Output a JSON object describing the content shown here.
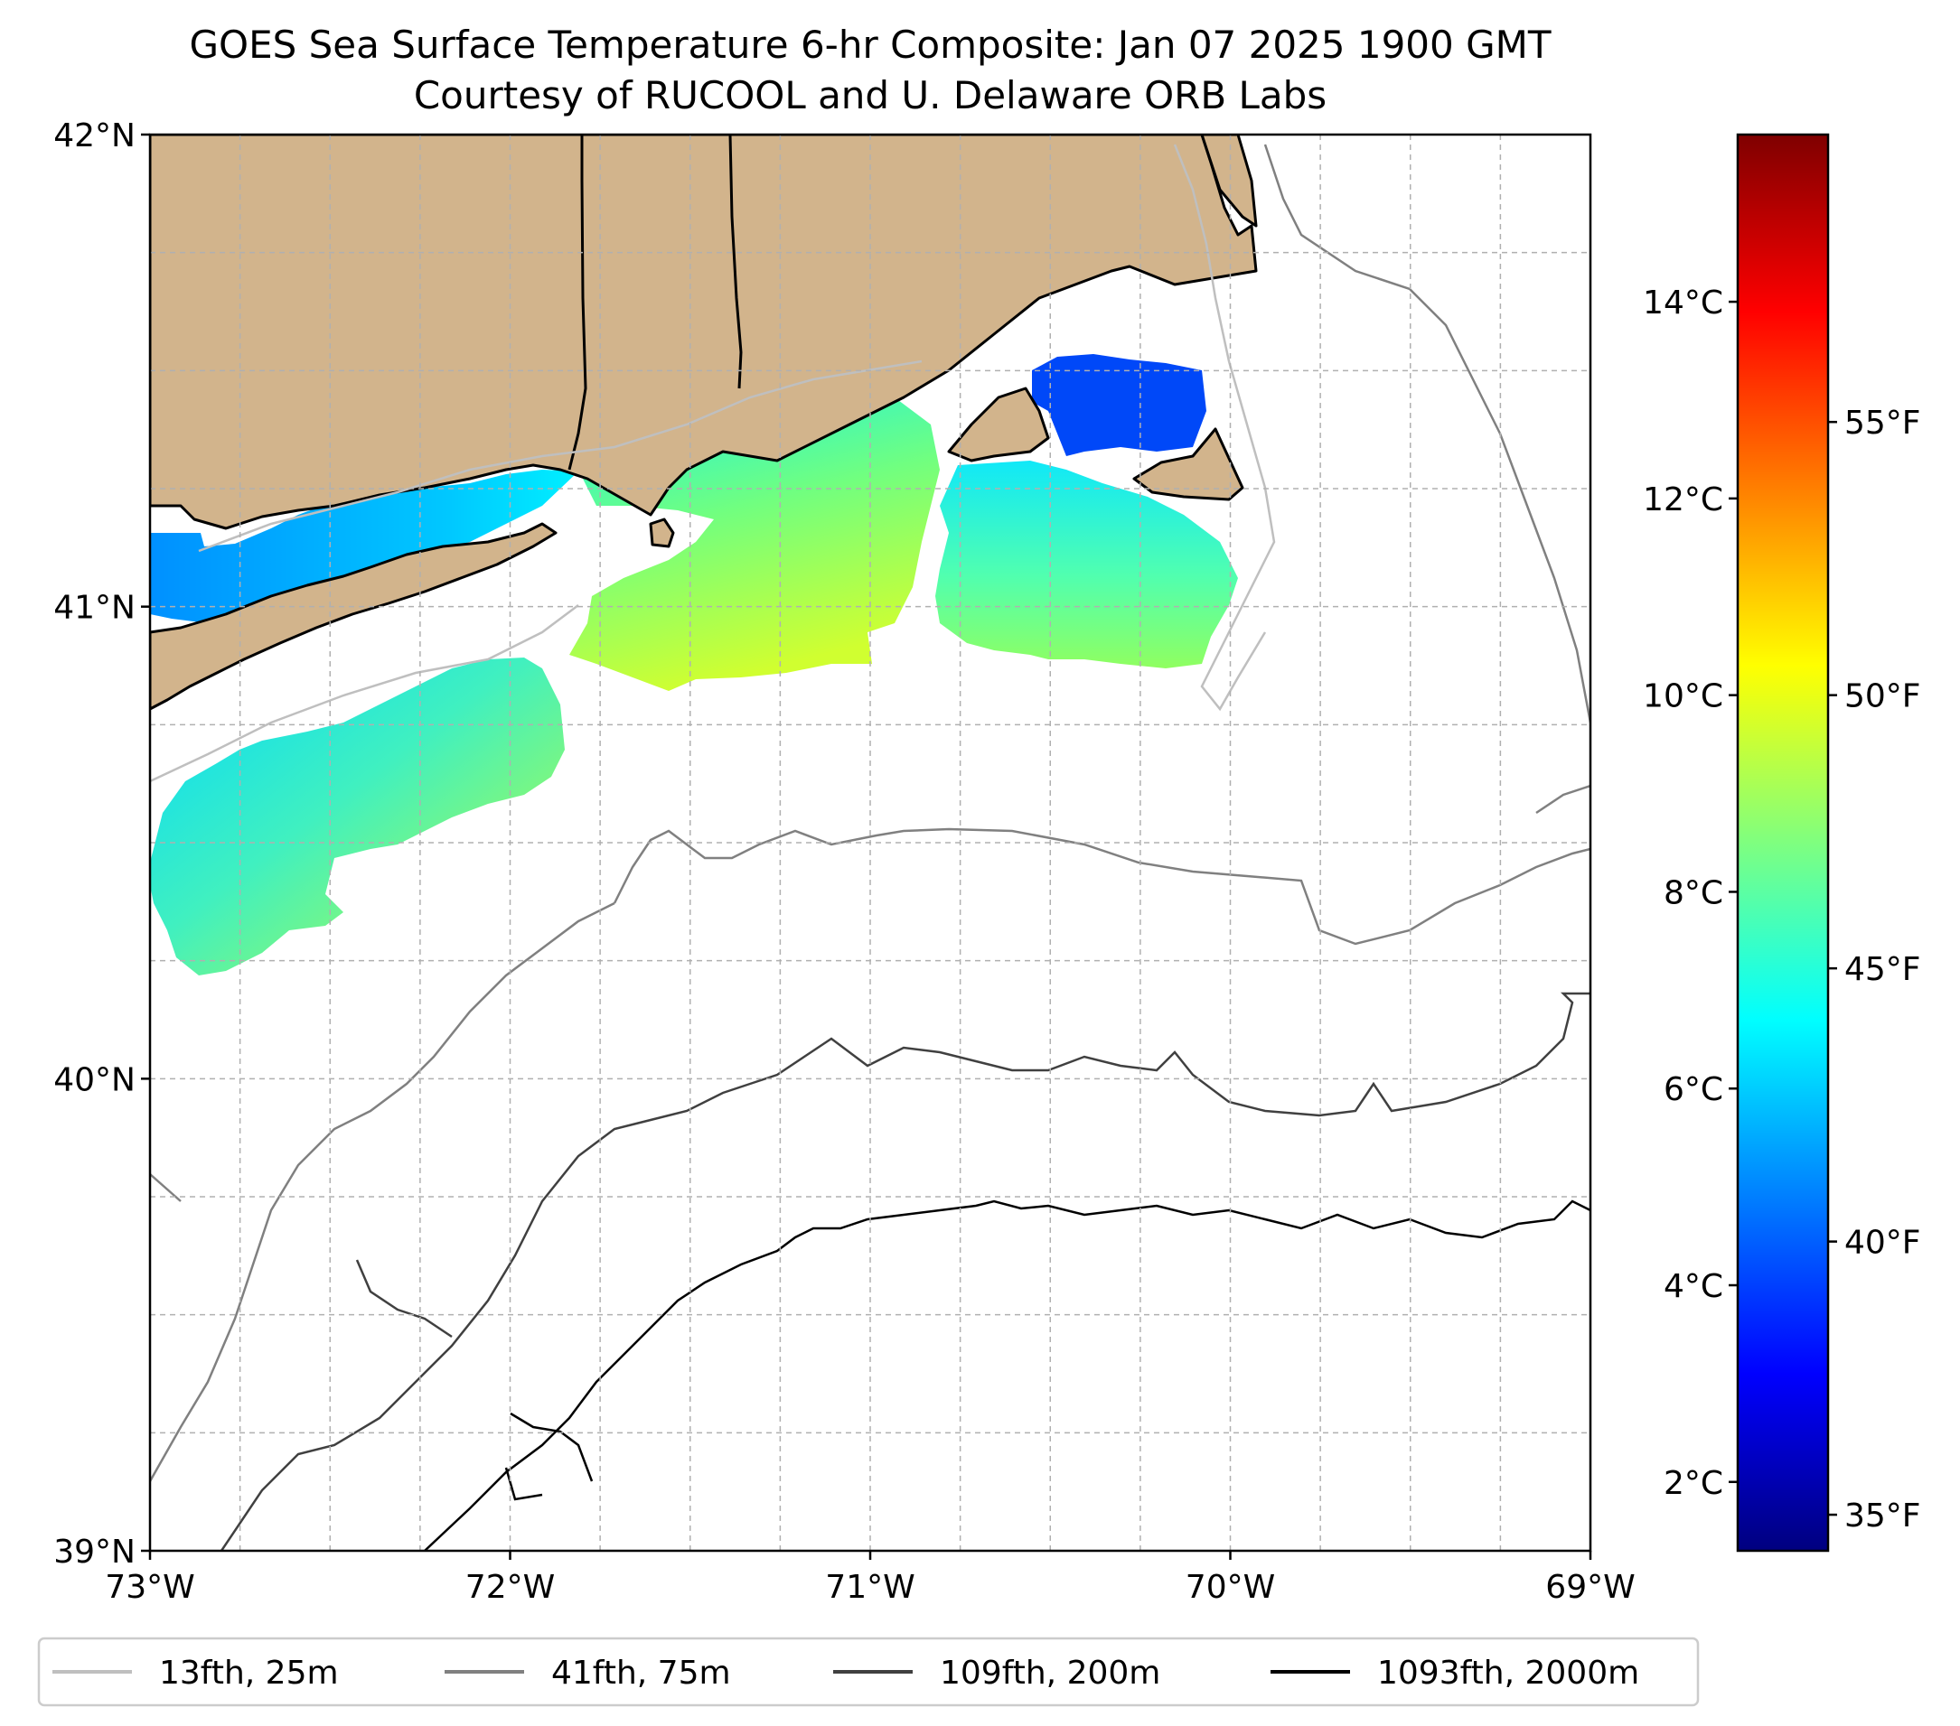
{
  "title": {
    "line1": "GOES Sea Surface Temperature 6-hr Composite: Jan 07 2025 1900 GMT",
    "line2": "Courtesy of RUCOOL and U. Delaware ORB Labs"
  },
  "map": {
    "lon_range": [
      -73,
      -69
    ],
    "lat_range": [
      39,
      42
    ],
    "lon_ticks": [
      {
        "value": -73,
        "label": "73°W"
      },
      {
        "value": -72,
        "label": "72°W"
      },
      {
        "value": -71,
        "label": "71°W"
      },
      {
        "value": -70,
        "label": "70°W"
      },
      {
        "value": -69,
        "label": "69°W"
      }
    ],
    "lat_ticks": [
      {
        "value": 39,
        "label": "39°N"
      },
      {
        "value": 40,
        "label": "40°N"
      },
      {
        "value": 41,
        "label": "41°N"
      },
      {
        "value": 42,
        "label": "42°N"
      }
    ],
    "minor_lon_gridlines": [
      -72.75,
      -72.5,
      -72.25,
      -71.75,
      -71.5,
      -71.25,
      -70.75,
      -70.5,
      -70.25,
      -69.75,
      -69.5,
      -69.25
    ],
    "minor_lat_gridlines": [
      39.25,
      39.5,
      39.75,
      40.25,
      40.5,
      40.75,
      41.25,
      41.5,
      41.75
    ],
    "land_color": "#d2b48c",
    "grid": "dashed"
  },
  "colorbar": {
    "celsius_range": [
      1.3,
      15.7
    ],
    "celsius_ticks": [
      {
        "value": 2,
        "label": "2°C"
      },
      {
        "value": 4,
        "label": "4°C"
      },
      {
        "value": 6,
        "label": "6°C"
      },
      {
        "value": 8,
        "label": "8°C"
      },
      {
        "value": 10,
        "label": "10°C"
      },
      {
        "value": 12,
        "label": "12°C"
      },
      {
        "value": 14,
        "label": "14°C"
      }
    ],
    "fahrenheit_ticks": [
      {
        "value": 35,
        "label": "35°F"
      },
      {
        "value": 40,
        "label": "40°F"
      },
      {
        "value": 45,
        "label": "45°F"
      },
      {
        "value": 50,
        "label": "50°F"
      },
      {
        "value": 55,
        "label": "55°F"
      }
    ],
    "colormap": "jet",
    "stops": [
      "#00007f",
      "#0000ff",
      "#007fff",
      "#00ffff",
      "#7fff7f",
      "#ffff00",
      "#ff7f00",
      "#ff0000",
      "#7f0000"
    ]
  },
  "legend": {
    "placement": "bottom",
    "entries": [
      {
        "label": "13fth, 25m",
        "color": "#bfbfbf"
      },
      {
        "label": "41fth, 75m",
        "color": "#808080"
      },
      {
        "label": "109fth, 200m",
        "color": "#404040"
      },
      {
        "label": "1093fth, 2000m",
        "color": "#000000"
      }
    ]
  }
}
